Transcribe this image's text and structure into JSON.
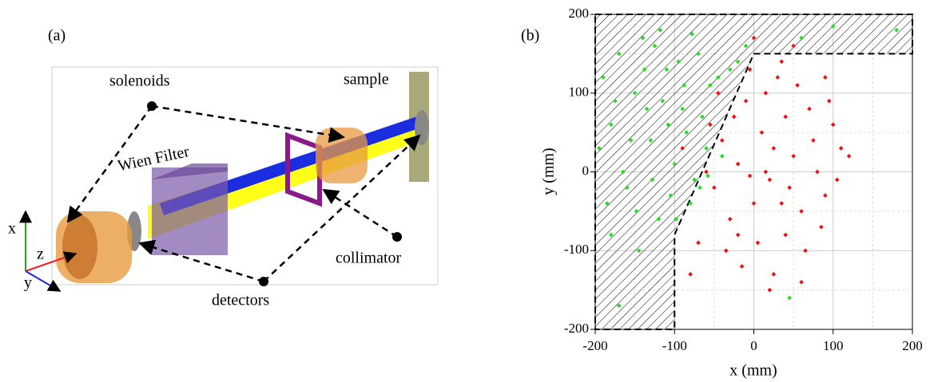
{
  "panel_a": {
    "label": "(a)",
    "solenoids": "solenoids",
    "sample": "sample",
    "wien_filter": "Wien Filter",
    "collimator": "collimator",
    "detectors": "detectors",
    "axis_x": "x",
    "axis_y": "y",
    "axis_z": "z"
  },
  "chart_data": {
    "type": "scatter",
    "panel_label": "(b)",
    "x_label": "x (mm)",
    "y_label": "y (mm)",
    "xlim": [
      -200,
      200
    ],
    "ylim": [
      -200,
      200
    ],
    "xticks": [
      -200,
      -100,
      0,
      100,
      200
    ],
    "yticks": [
      -200,
      -100,
      0,
      100,
      200
    ],
    "minor_xticks": [
      -150,
      -50,
      50,
      150
    ],
    "minor_yticks": [
      -150,
      -50,
      50,
      150
    ],
    "grid": true,
    "excluded_region": {
      "x": [
        -200,
        200,
        200,
        0,
        -100,
        -100,
        -200
      ],
      "y": [
        200,
        200,
        150,
        150,
        -80,
        -200,
        -200
      ]
    },
    "series": [
      {
        "color": "#22dd22",
        "x": [
          -190,
          -180,
          -170,
          -160,
          -150,
          -140,
          -130,
          -120,
          -110,
          -100,
          -90,
          -80,
          -70,
          -60,
          -55,
          -180,
          -165,
          -145,
          -135,
          -125,
          -115,
          -105,
          -95,
          -85,
          -75,
          -65,
          -45,
          -40,
          -30,
          -20,
          -195,
          -185,
          -175,
          -155,
          -148,
          -138,
          -128,
          -118,
          -108,
          -98,
          -88,
          -78,
          -68,
          -58,
          100,
          180,
          45,
          -170,
          -10,
          60
        ],
        "y": [
          120,
          60,
          150,
          -20,
          100,
          170,
          40,
          -60,
          130,
          10,
          80,
          -40,
          150,
          30,
          110,
          -80,
          0,
          -100,
          80,
          160,
          90,
          -30,
          140,
          50,
          -10,
          70,
          120,
          20,
          130,
          140,
          30,
          -40,
          90,
          40,
          -50,
          130,
          -10,
          180,
          60,
          -60,
          110,
          175,
          -20,
          -5,
          185,
          180,
          -160,
          -170,
          160,
          170
        ]
      },
      {
        "color": "#ee1111",
        "x": [
          -50,
          -40,
          -30,
          -20,
          -10,
          0,
          10,
          20,
          30,
          40,
          50,
          60,
          70,
          80,
          90,
          100,
          110,
          -35,
          -25,
          -15,
          -5,
          5,
          15,
          25,
          35,
          45,
          55,
          65,
          75,
          85,
          95,
          105,
          120,
          -60,
          -70,
          -80,
          -55,
          -45,
          15,
          25,
          -5,
          35,
          0,
          50,
          -90,
          20,
          60,
          90,
          -20,
          40
        ],
        "y": [
          -20,
          40,
          -60,
          10,
          90,
          -40,
          50,
          -10,
          120,
          -80,
          20,
          -50,
          80,
          0,
          -30,
          60,
          30,
          -100,
          70,
          -120,
          130,
          -90,
          100,
          -130,
          140,
          -20,
          110,
          -100,
          40,
          -70,
          90,
          -10,
          20,
          0,
          -90,
          -130,
          60,
          100,
          0,
          30,
          -5,
          -40,
          170,
          160,
          30,
          -150,
          -140,
          120,
          -80,
          70
        ]
      }
    ]
  }
}
